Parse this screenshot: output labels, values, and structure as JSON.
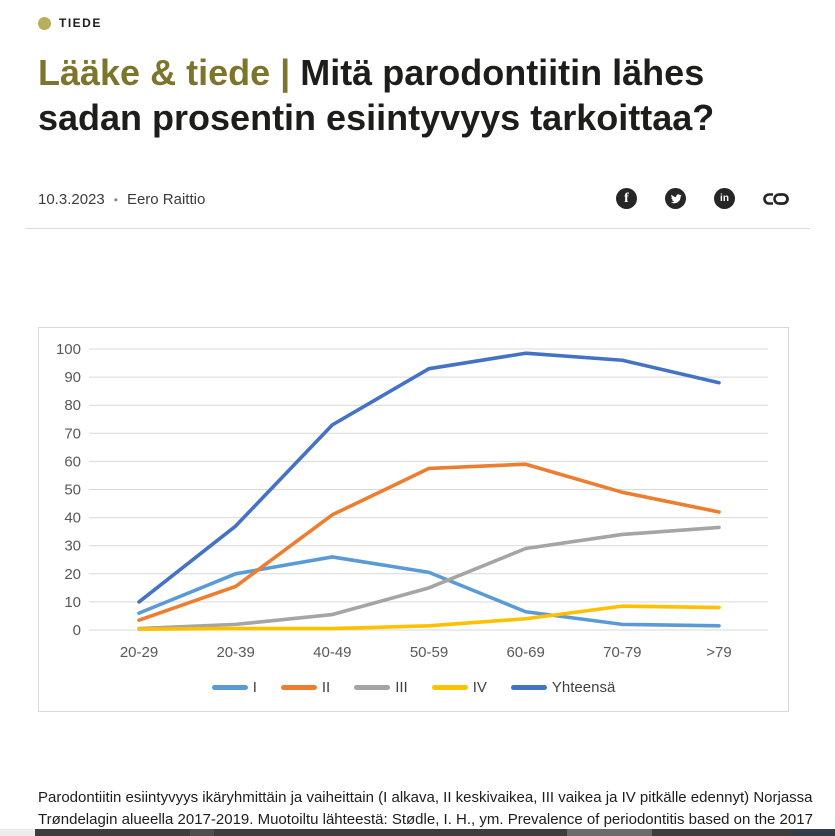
{
  "category": {
    "label": "TIEDE",
    "dot_color": "#b8af5e"
  },
  "title": {
    "prefix": "Lääke & tiede |",
    "line1_rest": "Mitä parodontiitin lähes",
    "line2": "sadan prosentin esiintyvyys tarkoittaa?",
    "highlight_color": "#7d752b"
  },
  "meta": {
    "date": "10.3.2023",
    "separator": "•",
    "author": "Eero Raittio"
  },
  "social": {
    "facebook_label": "f",
    "linkedin_label": "in",
    "icons": [
      "facebook-icon",
      "twitter-icon",
      "linkedin-icon",
      "copy-link-icon"
    ]
  },
  "chart_data": {
    "type": "line",
    "categories": [
      "20-29",
      "20-39",
      "40-49",
      "50-59",
      "60-69",
      "70-79",
      ">79"
    ],
    "series": [
      {
        "name": "I",
        "color": "#5B9BD5",
        "values": [
          6,
          20,
          26,
          20.5,
          6.5,
          2,
          1.5
        ]
      },
      {
        "name": "II",
        "color": "#ED7D31",
        "values": [
          3.5,
          15.5,
          41,
          57.5,
          59,
          49,
          42
        ]
      },
      {
        "name": "III",
        "color": "#A5A5A5",
        "values": [
          0.5,
          2,
          5.5,
          15,
          29,
          34,
          36.5
        ]
      },
      {
        "name": "IV",
        "color": "#FFC000",
        "values": [
          0.3,
          0.5,
          0.5,
          1.5,
          4,
          8.5,
          8
        ]
      },
      {
        "name": "Yhteensä",
        "color": "#4472C4",
        "values": [
          10,
          37,
          73,
          93,
          98.5,
          96,
          88
        ]
      }
    ],
    "title": "",
    "xlabel": "",
    "ylabel": "",
    "ylim": [
      0,
      100
    ],
    "yticks": [
      0,
      10,
      20,
      30,
      40,
      50,
      60,
      70,
      80,
      90,
      100
    ],
    "grid": true,
    "gridline_color": "#d9d9d9",
    "tick_label_color": "#595959",
    "legend_position": "bottom"
  },
  "caption": {
    "line1": "Parodontiitin esiintyvyys ikäryhmittäin ja vaiheittain (I alkava, II keskivaikea, III vaikea ja IV pitkälle edennyt) Norjassa",
    "line2": "Trøndelagin alueella 2017-2019.  Muotoiltu lähteestä: Stødle, I. H., ym. Prevalence of periodontitis based on the 2017"
  }
}
